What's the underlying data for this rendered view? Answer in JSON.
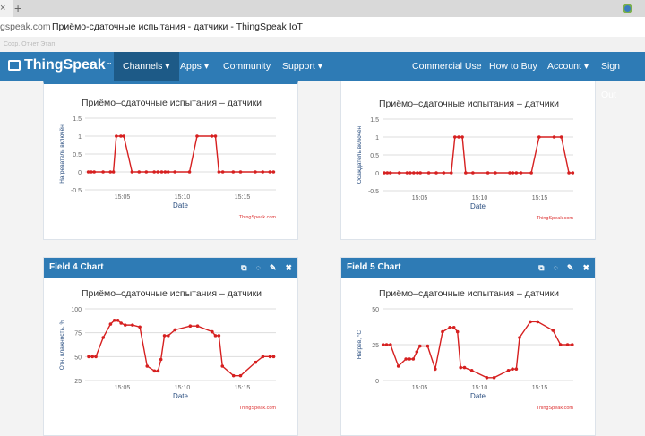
{
  "browser": {
    "close_tab": "×",
    "new_tab": "+",
    "domain": "gspeak.com",
    "page_title": "Приёмо-сдаточные испытания - датчики - ThingSpeak IoT",
    "bookmark": "Сохр. Отчет Этап"
  },
  "nav": {
    "brand": "ThingSpeak",
    "tm": "™",
    "items": [
      {
        "label": "Channels ▾"
      },
      {
        "label": "Apps ▾"
      },
      {
        "label": "Community"
      },
      {
        "label": "Support ▾"
      },
      {
        "label": "Commercial Use"
      },
      {
        "label": "How to Buy"
      },
      {
        "label": "Account ▾"
      },
      {
        "label": "Sign Out"
      }
    ]
  },
  "colors": {
    "accent": "#2e7bb5",
    "series": "#d62020",
    "axis_label": "#2b4f80"
  },
  "panels": [
    {
      "header": ""
    },
    {
      "header": ""
    },
    {
      "header": "Field 4 Chart"
    },
    {
      "header": "Field 5 Chart"
    }
  ],
  "panel_icons": {
    "open": "⧉",
    "comment": "◌",
    "edit": "✎",
    "close": "✖"
  },
  "chart_data": [
    {
      "type": "line",
      "title": "Приёмо–сдаточные испытания – датчики",
      "xlabel": "Date",
      "ylabel": "Нагреватель включён",
      "credit": "ThingSpeak.com",
      "x_unit": "minutes after 15:00",
      "xlim": [
        1.9,
        17.8
      ],
      "ylim": [
        -0.5,
        1.5
      ],
      "yticks": [
        1.5,
        1,
        0.5,
        0,
        -0.5
      ],
      "ytick_labels": [
        "1.5",
        "1",
        "0.5",
        "0",
        "-0.5"
      ],
      "xticks": [
        5,
        10,
        15
      ],
      "xtick_labels": [
        "15:05",
        "15:10",
        "15:15"
      ],
      "x": [
        2.17,
        2.41,
        2.66,
        3.4,
        4.01,
        4.26,
        4.5,
        4.88,
        5.12,
        5.81,
        6.4,
        7.0,
        7.66,
        7.96,
        8.28,
        8.57,
        8.82,
        9.38,
        10.6,
        11.23,
        12.46,
        12.76,
        13.05,
        13.37,
        14.24,
        14.85,
        16.08,
        16.7,
        17.3,
        17.6
      ],
      "y": [
        0,
        0,
        0,
        0,
        0,
        0,
        1,
        1,
        1,
        0,
        0,
        0,
        0,
        0,
        0,
        0,
        0,
        0,
        0,
        1,
        1,
        1,
        0,
        0,
        0,
        0,
        0,
        0,
        0,
        0
      ]
    },
    {
      "type": "line",
      "title": "Приёмо–сдаточные испытания – датчики",
      "xlabel": "Date",
      "ylabel": "Осаждатель включён",
      "credit": "ThingSpeak.com",
      "x_unit": "minutes after 15:00",
      "xlim": [
        1.9,
        17.8
      ],
      "ylim": [
        -0.5,
        1.5
      ],
      "yticks": [
        1.5,
        1,
        0.5,
        0,
        -0.5
      ],
      "ytick_labels": [
        "1.5",
        "1",
        "0.5",
        "0",
        "-0.5"
      ],
      "xticks": [
        5,
        10,
        15
      ],
      "xtick_labels": [
        "15:05",
        "15:10",
        "15:15"
      ],
      "x": [
        2.05,
        2.3,
        2.55,
        3.3,
        3.95,
        4.2,
        4.5,
        4.8,
        5.05,
        5.75,
        6.38,
        7.0,
        7.63,
        7.93,
        8.25,
        8.55,
        8.83,
        9.43,
        10.68,
        11.3,
        12.5,
        12.75,
        13.05,
        13.43,
        14.3,
        14.95,
        16.2,
        16.8,
        17.43,
        17.75
      ],
      "y": [
        0,
        0,
        0,
        0,
        0,
        0,
        0,
        0,
        0,
        0,
        0,
        0,
        0,
        1,
        1,
        1,
        0,
        0,
        0,
        0,
        0,
        0,
        0,
        0,
        0,
        1,
        1,
        1,
        0,
        0
      ]
    },
    {
      "type": "line",
      "title": "Приёмо–сдаточные испытания – датчики",
      "xlabel": "Date",
      "ylabel": "Отн. влажность, %",
      "credit": "ThingSpeak.com",
      "x_unit": "minutes after 15:00",
      "xlim": [
        1.9,
        17.8
      ],
      "ylim": [
        25,
        100
      ],
      "yticks": [
        100,
        75,
        50,
        25
      ],
      "ytick_labels": [
        "100",
        "75",
        "50",
        "25"
      ],
      "xticks": [
        5,
        10,
        15
      ],
      "xtick_labels": [
        "15:05",
        "15:10",
        "15:15"
      ],
      "x": [
        2.2,
        2.51,
        2.8,
        3.41,
        4.02,
        4.34,
        4.63,
        4.9,
        5.24,
        5.85,
        6.46,
        7.07,
        7.68,
        7.98,
        8.22,
        8.51,
        8.83,
        9.39,
        10.66,
        11.27,
        12.49,
        12.76,
        13.05,
        13.34,
        14.27,
        14.85,
        16.1,
        16.71,
        17.32,
        17.61
      ],
      "y": [
        50,
        50,
        50,
        70,
        84,
        88,
        88,
        85,
        83,
        83,
        81,
        40,
        35,
        35,
        47,
        72,
        72,
        78,
        82,
        82,
        76,
        72,
        72,
        40,
        30,
        30,
        44,
        50,
        50,
        50
      ]
    },
    {
      "type": "line",
      "title": "Приёмо–сдаточные испытания – датчики",
      "xlabel": "Date",
      "ylabel": "Нагрев, °С",
      "credit": "ThingSpeak.com",
      "x_unit": "minutes after 15:00",
      "xlim": [
        1.9,
        17.8
      ],
      "ylim": [
        0,
        50
      ],
      "yticks": [
        50,
        25,
        0
      ],
      "ytick_labels": [
        "50",
        "25",
        "0"
      ],
      "xticks": [
        5,
        10,
        15
      ],
      "xtick_labels": [
        "15:05",
        "15:10",
        "15:15"
      ],
      "x": [
        1.95,
        2.24,
        2.56,
        3.22,
        3.85,
        4.15,
        4.46,
        4.76,
        5.02,
        5.66,
        6.29,
        6.9,
        7.51,
        7.85,
        8.15,
        8.41,
        8.73,
        9.34,
        10.59,
        11.2,
        12.39,
        12.73,
        13.05,
        13.32,
        14.22,
        14.83,
        16.1,
        16.73,
        17.32,
        17.71
      ],
      "y": [
        25,
        25,
        25,
        10,
        15,
        15,
        15,
        20,
        24,
        24,
        8,
        34,
        37,
        37,
        34,
        9,
        9,
        7,
        2,
        2,
        7,
        8,
        8,
        30,
        41,
        41,
        35,
        25,
        25,
        25
      ]
    }
  ]
}
